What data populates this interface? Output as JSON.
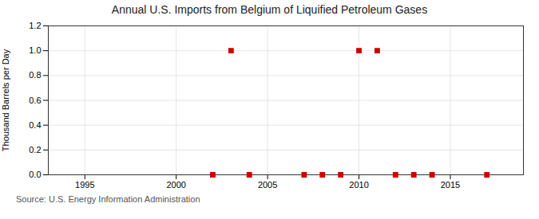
{
  "chart_data": {
    "type": "scatter",
    "title": "Annual U.S. Imports from Belgium of Liquified Petroleum Gases",
    "ylabel": "Thousand Barrels per Day",
    "source": "Source: U.S. Energy Information Administration",
    "x": [
      2002,
      2003,
      2004,
      2007,
      2008,
      2009,
      2010,
      2011,
      2012,
      2013,
      2014,
      2017
    ],
    "values": [
      0.0,
      1.0,
      0.0,
      0.0,
      0.0,
      0.0,
      1.0,
      1.0,
      0.0,
      0.0,
      0.0,
      0.0
    ],
    "color": "#cc0000",
    "marker": "square",
    "xlim": [
      1993,
      2019
    ],
    "ylim": [
      0,
      1.2
    ],
    "xticks": [
      1995,
      2000,
      2005,
      2010,
      2015
    ],
    "yticks": [
      {
        "value": 0.0,
        "label": "0.0"
      },
      0.2,
      0.4,
      0.6,
      0.8,
      {
        "value": 1.0,
        "label": "1.0"
      },
      1.2
    ],
    "grid": true
  }
}
